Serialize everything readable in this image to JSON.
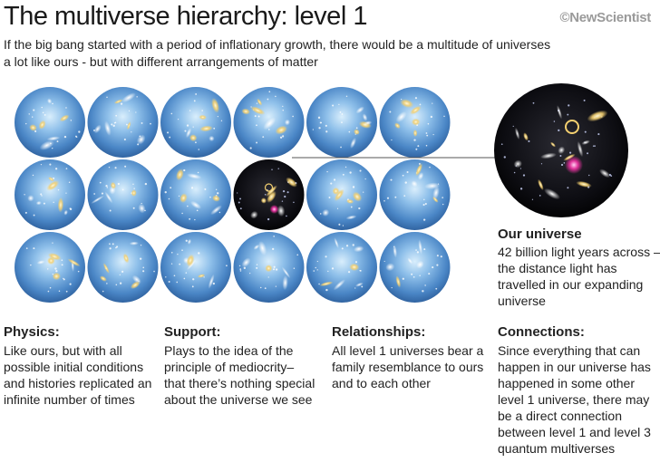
{
  "header": {
    "title": "The multiverse hierarchy: level 1",
    "brand": "©NewScientist",
    "subtitle_lines": [
      "If the big bang started with a period of inflationary growth, there would be a multitude of universes",
      "a lot like ours - but with different arrangements of matter"
    ]
  },
  "colors": {
    "sphere_blue": "#4a86c6",
    "sphere_highlight": "#d7ecfb",
    "our_universe": "#0b0b12",
    "galaxy_yellow": "#f4d070",
    "galaxy_magenta": "#e0309a"
  },
  "grid": {
    "rows": 3,
    "columns": 6,
    "highlighted": "row 2, column 4"
  },
  "our_universe": {
    "heading": "Our universe",
    "body": "42 billion light years across – the distance light has travelled in our expanding universe"
  },
  "columns": [
    {
      "heading": "Physics:",
      "body": "Like ours, but with all possible initial conditions and histories replicated an infinite number of times"
    },
    {
      "heading": "Support:",
      "body": "Plays to the idea of the principle of mediocrity– that there’s nothing special about the universe we see"
    },
    {
      "heading": "Relationships:",
      "body": "All level 1 universes bear a family resemblance to ours and to each other"
    },
    {
      "heading": "Connections:",
      "body": "Since everything that can happen in our universe has happened in some other level 1 universe, there may be a direct connection between level 1 and level 3 quantum multiverses"
    }
  ]
}
